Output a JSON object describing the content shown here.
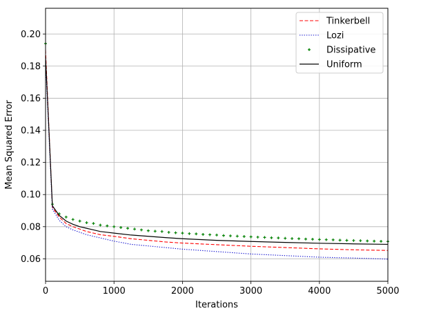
{
  "chart_data": {
    "type": "line",
    "title": "",
    "xlabel": "Iterations",
    "ylabel": "Mean Squared Error",
    "xlim": [
      0,
      5000
    ],
    "ylim": [
      0.046,
      0.216
    ],
    "xticks": [
      0,
      1000,
      2000,
      3000,
      4000,
      5000
    ],
    "yticks": [
      0.06,
      0.08,
      0.1,
      0.12,
      0.14,
      0.16,
      0.18,
      0.2
    ],
    "ytick_labels": [
      "0.06",
      "0.08",
      "0.10",
      "0.12",
      "0.14",
      "0.16",
      "0.18",
      "0.20"
    ],
    "grid": true,
    "legend_position": "top-right",
    "series": [
      {
        "name": "Tinkerbell",
        "style": "dashed",
        "color": "#ff0000",
        "x": [
          0,
          100,
          200,
          300,
          400,
          500,
          600,
          700,
          800,
          900,
          1000,
          1250,
          1500,
          1750,
          2000,
          2500,
          3000,
          3500,
          4000,
          4500,
          5000
        ],
        "y": [
          0.19,
          0.092,
          0.086,
          0.082,
          0.08,
          0.0785,
          0.077,
          0.076,
          0.075,
          0.0745,
          0.074,
          0.0725,
          0.0715,
          0.0705,
          0.0698,
          0.0688,
          0.0678,
          0.067,
          0.0662,
          0.0656,
          0.0652
        ]
      },
      {
        "name": "Lozi",
        "style": "dotted",
        "color": "#0000cc",
        "x": [
          0,
          100,
          200,
          300,
          400,
          500,
          600,
          700,
          800,
          900,
          1000,
          1250,
          1500,
          1750,
          2000,
          2500,
          3000,
          3500,
          4000,
          4500,
          5000
        ],
        "y": [
          0.183,
          0.091,
          0.084,
          0.08,
          0.078,
          0.0765,
          0.075,
          0.074,
          0.073,
          0.072,
          0.071,
          0.069,
          0.068,
          0.067,
          0.066,
          0.0645,
          0.063,
          0.062,
          0.061,
          0.0605,
          0.0598
        ]
      },
      {
        "name": "Dissipative",
        "style": "markers",
        "color": "#008000",
        "x": [
          0,
          100,
          200,
          300,
          400,
          500,
          600,
          700,
          800,
          900,
          1000,
          1100,
          1200,
          1300,
          1400,
          1500,
          1600,
          1700,
          1800,
          1900,
          2000,
          2100,
          2200,
          2300,
          2400,
          2500,
          2600,
          2700,
          2800,
          2900,
          3000,
          3100,
          3200,
          3300,
          3400,
          3500,
          3600,
          3700,
          3800,
          3900,
          4000,
          4100,
          4200,
          4300,
          4400,
          4500,
          4600,
          4700,
          4800,
          4900,
          5000
        ],
        "y": [
          0.194,
          0.094,
          0.088,
          0.086,
          0.0845,
          0.0835,
          0.0825,
          0.082,
          0.081,
          0.0805,
          0.08,
          0.0795,
          0.079,
          0.0785,
          0.078,
          0.0775,
          0.0772,
          0.077,
          0.0765,
          0.0762,
          0.076,
          0.0757,
          0.0755,
          0.0752,
          0.075,
          0.0748,
          0.0745,
          0.0743,
          0.0741,
          0.0739,
          0.0737,
          0.0735,
          0.0733,
          0.0731,
          0.073,
          0.0728,
          0.0726,
          0.0725,
          0.0723,
          0.0722,
          0.072,
          0.0719,
          0.0718,
          0.0716,
          0.0715,
          0.0714,
          0.0713,
          0.0711,
          0.071,
          0.0709,
          0.0708
        ]
      },
      {
        "name": "Uniform",
        "style": "solid",
        "color": "#000000",
        "x": [
          0,
          100,
          200,
          300,
          400,
          500,
          600,
          700,
          800,
          900,
          1000,
          1250,
          1500,
          1750,
          2000,
          2500,
          3000,
          3500,
          4000,
          4500,
          5000
        ],
        "y": [
          0.186,
          0.093,
          0.087,
          0.0835,
          0.0815,
          0.08,
          0.079,
          0.078,
          0.077,
          0.0765,
          0.076,
          0.0748,
          0.074,
          0.0732,
          0.0725,
          0.0715,
          0.0708,
          0.0702,
          0.0697,
          0.0693,
          0.069
        ]
      }
    ]
  }
}
